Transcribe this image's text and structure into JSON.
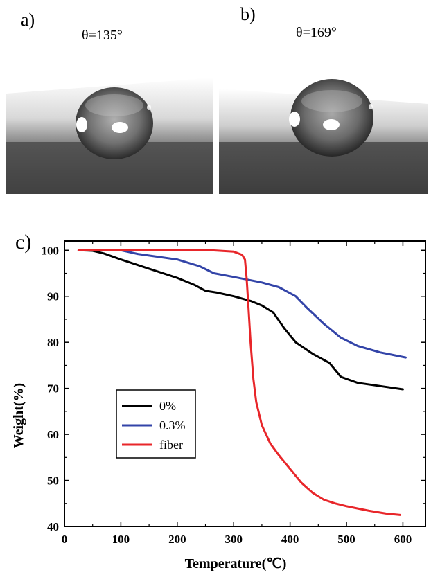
{
  "panels": {
    "a": {
      "label": "a)",
      "angle": "θ=135°"
    },
    "b": {
      "label": "b)",
      "angle": "θ=169°"
    },
    "c": {
      "label": "c)"
    }
  },
  "colors": {
    "zero": "#000000",
    "p03": "#3344a8",
    "fiber": "#e8262a"
  },
  "chart_data": {
    "type": "line",
    "xlabel": "Temperature(℃)",
    "ylabel": "Weight(%)",
    "xlim": [
      0,
      640
    ],
    "ylim": [
      40,
      102
    ],
    "xticks": [
      0,
      100,
      200,
      300,
      400,
      500,
      600
    ],
    "yticks": [
      40,
      50,
      60,
      70,
      80,
      90,
      100
    ],
    "legend_position": "lower-left",
    "series": [
      {
        "name": "0%",
        "color": "#000000",
        "points": [
          [
            25,
            100
          ],
          [
            50,
            99.9
          ],
          [
            70,
            99.3
          ],
          [
            100,
            98
          ],
          [
            150,
            96
          ],
          [
            200,
            94
          ],
          [
            230,
            92.5
          ],
          [
            250,
            91.2
          ],
          [
            270,
            90.8
          ],
          [
            300,
            90
          ],
          [
            330,
            89
          ],
          [
            350,
            88
          ],
          [
            370,
            86.5
          ],
          [
            390,
            83
          ],
          [
            410,
            80
          ],
          [
            440,
            77.5
          ],
          [
            470,
            75.5
          ],
          [
            490,
            72.5
          ],
          [
            520,
            71.2
          ],
          [
            560,
            70.5
          ],
          [
            600,
            69.8
          ]
        ]
      },
      {
        "name": "0.3%",
        "color": "#3344a8",
        "points": [
          [
            25,
            100
          ],
          [
            100,
            100
          ],
          [
            130,
            99.2
          ],
          [
            200,
            98
          ],
          [
            240,
            96.5
          ],
          [
            265,
            95
          ],
          [
            300,
            94.2
          ],
          [
            350,
            93
          ],
          [
            380,
            92
          ],
          [
            410,
            90
          ],
          [
            430,
            87.5
          ],
          [
            460,
            84
          ],
          [
            490,
            81
          ],
          [
            520,
            79.2
          ],
          [
            560,
            77.8
          ],
          [
            605,
            76.7
          ]
        ]
      },
      {
        "name": "fiber",
        "color": "#e8262a",
        "points": [
          [
            25,
            100
          ],
          [
            100,
            100
          ],
          [
            200,
            100
          ],
          [
            260,
            100
          ],
          [
            300,
            99.7
          ],
          [
            315,
            99
          ],
          [
            320,
            98
          ],
          [
            323,
            94
          ],
          [
            326,
            88
          ],
          [
            330,
            80
          ],
          [
            335,
            72
          ],
          [
            340,
            67
          ],
          [
            350,
            62
          ],
          [
            365,
            58
          ],
          [
            380,
            55.5
          ],
          [
            400,
            52.5
          ],
          [
            420,
            49.5
          ],
          [
            440,
            47.3
          ],
          [
            460,
            45.8
          ],
          [
            480,
            45
          ],
          [
            500,
            44.4
          ],
          [
            540,
            43.4
          ],
          [
            570,
            42.8
          ],
          [
            595,
            42.5
          ]
        ]
      }
    ]
  }
}
